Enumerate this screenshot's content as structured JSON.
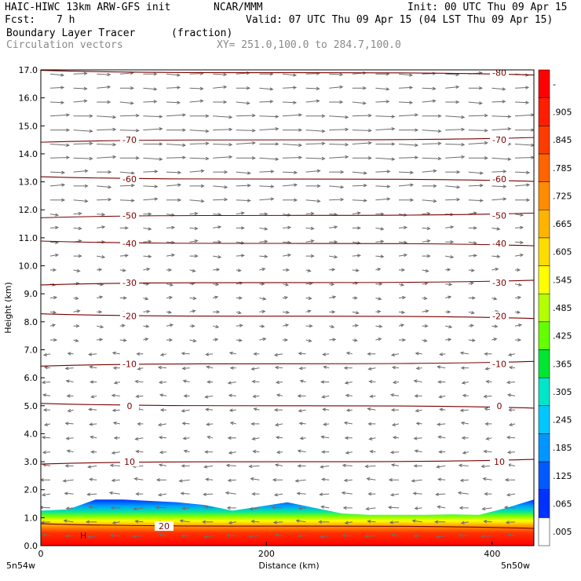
{
  "header": {
    "line1_left": "HAIC-HIWC 13km ARW-GFS init",
    "line1_mid": "NCAR/MMM",
    "line1_right": "Init: 00 UTC Thu 09 Apr 15",
    "line2_left": "Fcst:",
    "line2_fcst": "7 h",
    "line2_right": "Valid: 07 UTC Thu 09 Apr 15 (04 LST Thu 09 Apr 15)",
    "field_name": "Boundary Layer Tracer",
    "field_unit": "(fraction)",
    "vector_label": "Circulation vectors",
    "xy_label": "XY= 251.0,100.0 to 284.7,100.0"
  },
  "chart_data": {
    "type": "heatmap",
    "ylabel": "Height (km)",
    "xlabel": "Distance (km)",
    "ylim": [
      0,
      17
    ],
    "xlim": [
      0,
      437
    ],
    "y_ticks": [
      "0.0",
      "1.0",
      "2.0",
      "3.0",
      "4.0",
      "5.0",
      "6.0",
      "7.0",
      "8.0",
      "9.0",
      "10.0",
      "11.0",
      "12.0",
      "13.0",
      "14.0",
      "15.0",
      "16.0",
      "17.0"
    ],
    "x_ticks": [
      {
        "value": 0,
        "label": "0"
      },
      {
        "value": 200,
        "label": "200"
      },
      {
        "value": 400,
        "label": "400"
      }
    ],
    "x_end_labels": [
      "5n54w",
      "5n50w"
    ],
    "colorbar": {
      "labels": [
        ".005",
        ".065",
        ".125",
        ".185",
        ".245",
        ".305",
        ".365",
        ".425",
        ".485",
        ".545",
        ".605",
        ".665",
        ".725",
        ".785",
        ".845",
        ".905",
        "-"
      ],
      "colors": [
        "#ffffff",
        "#0032ff",
        "#005aff",
        "#0096ff",
        "#00c8ff",
        "#00e6c8",
        "#00e632",
        "#64ff00",
        "#b4ff00",
        "#ffff00",
        "#ffdc00",
        "#ffb400",
        "#ff8c00",
        "#ff6400",
        "#ff3c00",
        "#ff1e00",
        "#ff0000"
      ]
    },
    "temperature_contours": [
      {
        "label": "-80",
        "y": 16.9
      },
      {
        "label": "-70",
        "y": 14.5
      },
      {
        "label": "-60",
        "y": 13.1
      },
      {
        "label": "-50",
        "y": 11.8
      },
      {
        "label": "-40",
        "y": 10.8
      },
      {
        "label": "-30",
        "y": 9.4
      },
      {
        "label": "-20",
        "y": 8.2
      },
      {
        "label": "-10",
        "y": 6.5
      },
      {
        "label": "0",
        "y": 5.0
      },
      {
        "label": "10",
        "y": 3.0
      },
      {
        "label": "20",
        "y": 0.7
      }
    ],
    "contour_color": "#7a0000",
    "vector_color": "#6e6e6e",
    "pbl_top_km": [
      1.25,
      1.3,
      1.65,
      1.65,
      1.6,
      1.55,
      1.45,
      1.25,
      1.4,
      1.55,
      1.35,
      1.15,
      1.1,
      1.1,
      1.1,
      1.12,
      1.1,
      1.35,
      1.65
    ],
    "high_marker": "H"
  }
}
